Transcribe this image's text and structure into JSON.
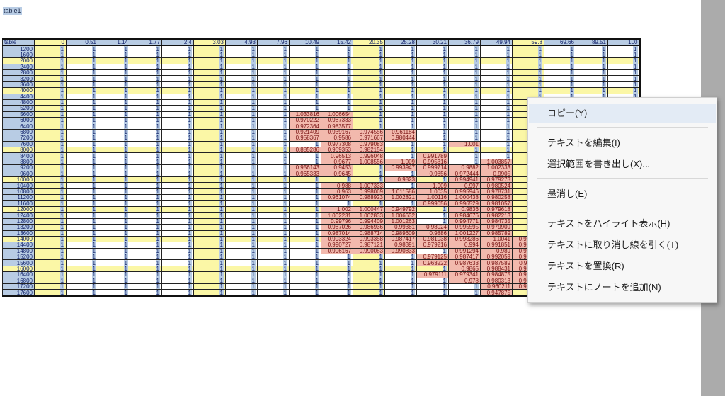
{
  "document": {
    "title": "table1"
  },
  "table": {
    "corner": "table",
    "columns": [
      "0",
      "0.51",
      "1.14",
      "1.77",
      "2.4",
      "3.03",
      "4.93",
      "7.96",
      "10.49",
      "15.42",
      "20.35",
      "25.28",
      "30.21",
      "36.79",
      "49.94",
      "59.8",
      "69.66",
      "89.51",
      "100"
    ],
    "highlight_columns": [
      "0",
      "3.03",
      "20.35",
      "59.8"
    ],
    "highlight_rows": [
      "2000",
      "4000",
      "8000",
      "10000",
      "12000",
      "14000",
      "16000"
    ],
    "rows": [
      {
        "h": "1200",
        "c": [
          "1",
          "1",
          "1",
          "1",
          "1",
          "1",
          "1",
          "1",
          "1",
          "1",
          "1",
          "1",
          "1",
          "1",
          "1",
          "1",
          "1",
          "1",
          "1"
        ]
      },
      {
        "h": "1600",
        "c": [
          "1",
          "1",
          "1",
          "1",
          "1",
          "1",
          "1",
          "1",
          "1",
          "1",
          "1",
          "1",
          "1",
          "1",
          "1",
          "1",
          "1",
          "1",
          "1"
        ]
      },
      {
        "h": "2000",
        "c": [
          "1",
          "1",
          "1",
          "1",
          "1",
          "1",
          "1",
          "1",
          "1",
          "1",
          "1",
          "1",
          "1",
          "1",
          "1",
          "1",
          "1",
          "1",
          "1"
        ]
      },
      {
        "h": "2400",
        "c": [
          "1",
          "1",
          "1",
          "1",
          "1",
          "1",
          "1",
          "1",
          "1",
          "1",
          "1",
          "1",
          "1",
          "1",
          "1",
          "1",
          "1",
          "1",
          "1"
        ]
      },
      {
        "h": "2800",
        "c": [
          "1",
          "1",
          "1",
          "1",
          "1",
          "1",
          "1",
          "1",
          "1",
          "1",
          "1",
          "1",
          "1",
          "1",
          "1",
          "1",
          "1",
          "1",
          "1"
        ]
      },
      {
        "h": "3200",
        "c": [
          "1",
          "1",
          "1",
          "1",
          "1",
          "1",
          "1",
          "1",
          "1",
          "1",
          "1",
          "1",
          "1",
          "1",
          "1",
          "1",
          "1",
          "1",
          "1"
        ]
      },
      {
        "h": "3600",
        "c": [
          "1",
          "1",
          "1",
          "1",
          "1",
          "1",
          "1",
          "1",
          "1",
          "1",
          "1",
          "1",
          "1",
          "1",
          "1",
          "1",
          "1",
          "1",
          "1"
        ]
      },
      {
        "h": "4000",
        "c": [
          "1",
          "1",
          "1",
          "1",
          "1",
          "1",
          "1",
          "1",
          "1",
          "1",
          "1",
          "1",
          "1",
          "1",
          "1",
          "1",
          "1",
          "1",
          "1"
        ]
      },
      {
        "h": "4400",
        "c": [
          "1",
          "1",
          "1",
          "1",
          "1",
          "1",
          "1",
          "1",
          "1",
          "1",
          "1",
          "1",
          "1",
          "1",
          "1",
          "1",
          "1",
          "1",
          "1"
        ]
      },
      {
        "h": "4800",
        "c": [
          "1",
          "1",
          "1",
          "1",
          "1",
          "1",
          "1",
          "1",
          "1",
          "1",
          "1",
          "1",
          "1",
          "1",
          "1",
          "1",
          "1",
          "1",
          "1"
        ]
      },
      {
        "h": "5200",
        "c": [
          "1",
          "1",
          "1",
          "1",
          "1",
          "1",
          "1",
          "1",
          "1",
          "1",
          "1",
          "1",
          "1",
          "1",
          "1",
          "1",
          "1",
          "1",
          "1"
        ]
      },
      {
        "h": "5600",
        "c": [
          "1",
          "1",
          "1",
          "1",
          "1",
          "1",
          "1",
          "1",
          "1.033816",
          "1.006654",
          "1",
          "1",
          "1",
          "1",
          "1",
          "1",
          "1",
          "1",
          "1"
        ]
      },
      {
        "h": "6000",
        "c": [
          "1",
          "1",
          "1",
          "1",
          "1",
          "1",
          "1",
          "1",
          "0.970222",
          "0.987333",
          "1",
          "1",
          "1",
          "1",
          "1",
          "1",
          "1",
          "1",
          "1"
        ]
      },
      {
        "h": "6400",
        "c": [
          "1",
          "1",
          "1",
          "1",
          "1",
          "1",
          "1",
          "1",
          "0.972364",
          "0.983577",
          "1",
          "1",
          "1",
          "1",
          "1",
          "1",
          "1",
          "1",
          "1"
        ]
      },
      {
        "h": "6800",
        "c": [
          "1",
          "1",
          "1",
          "1",
          "1",
          "1",
          "1",
          "1",
          "0.921409",
          "0.939167",
          "0.974556",
          "0.961184",
          "1",
          "1",
          "1",
          "1",
          "1",
          "1",
          "1"
        ]
      },
      {
        "h": "7200",
        "c": [
          "1",
          "1",
          "1",
          "1",
          "1",
          "1",
          "1",
          "1",
          "0.958367",
          "0.9586",
          "0.971667",
          "0.980444",
          "1",
          "1",
          "1",
          "1",
          "1",
          "1",
          "1"
        ]
      },
      {
        "h": "7600",
        "c": [
          "1",
          "1",
          "1",
          "1",
          "1",
          "1",
          "1",
          "1",
          "1",
          "0.977308",
          "0.979083",
          "1",
          "1",
          "1.001",
          "1",
          "1",
          "1",
          "1",
          "1"
        ]
      },
      {
        "h": "8000",
        "c": [
          "1",
          "1",
          "1",
          "1",
          "1",
          "1",
          "1",
          "1",
          "0.885286",
          "0.969353",
          "0.982154",
          "1",
          "1",
          "1",
          "1",
          "1",
          "1",
          "1",
          "1"
        ]
      },
      {
        "h": "8400",
        "c": [
          "1",
          "1",
          "1",
          "1",
          "1",
          "1",
          "1",
          "1",
          "1",
          "0.96513",
          "0.996048",
          "1",
          "0.991789",
          "1",
          "1",
          "1",
          "1",
          "1",
          "1"
        ]
      },
      {
        "h": "8800",
        "c": [
          "1",
          "1",
          "1",
          "1",
          "1",
          "1",
          "1",
          "1",
          "1",
          "0.9677",
          "1.008556",
          "1.009",
          "0.995316",
          "1",
          "1.003857",
          "1",
          "1",
          "1",
          "1"
        ]
      },
      {
        "h": "9200",
        "c": [
          "1",
          "1",
          "1",
          "1",
          "1",
          "1",
          "1",
          "1",
          "0.956143",
          "0.9453",
          "1",
          "0.993947",
          "0.999714",
          "0.9882",
          "1.002333",
          "1",
          "1",
          "1",
          "1"
        ]
      },
      {
        "h": "9600",
        "c": [
          "1",
          "1",
          "1",
          "1",
          "1",
          "1",
          "1",
          "1",
          "0.965333",
          "0.9645",
          "1",
          "1",
          "0.9856",
          "0.972444",
          "0.9905",
          "1",
          "1",
          "1",
          "1"
        ]
      },
      {
        "h": "10000",
        "c": [
          "1",
          "1",
          "1",
          "1",
          "1",
          "1",
          "1",
          "1",
          "1",
          "1",
          "1",
          "0.9823",
          "1",
          "0.994941",
          "0.979273",
          "1",
          "1",
          "1",
          "1"
        ]
      },
      {
        "h": "10400",
        "c": [
          "1",
          "1",
          "1",
          "1",
          "1",
          "1",
          "1",
          "1",
          "1",
          "0.988",
          "1.007333",
          "1",
          "1.009",
          "0.997",
          "0.980524",
          "1",
          "1",
          "1",
          "1"
        ]
      },
      {
        "h": "10800",
        "c": [
          "1",
          "1",
          "1",
          "1",
          "1",
          "1",
          "1",
          "1",
          "1",
          "0.963",
          "0.998069",
          "1.011586",
          "1.0035",
          "0.995946",
          "0.978731",
          "1",
          "1",
          "1",
          "1"
        ]
      },
      {
        "h": "11200",
        "c": [
          "1",
          "1",
          "1",
          "1",
          "1",
          "1",
          "1",
          "1",
          "1",
          "0.961074",
          "0.988923",
          "1.002821",
          "1.00116",
          "1.000438",
          "0.980258",
          "1",
          "1",
          "1",
          "1"
        ]
      },
      {
        "h": "11600",
        "c": [
          "1",
          "1",
          "1",
          "1",
          "1",
          "1",
          "1",
          "1",
          "1",
          "1",
          "1",
          "1",
          "0.999056",
          "0.996529",
          "0.981057",
          "1",
          "1",
          "1",
          "1"
        ]
      },
      {
        "h": "12000",
        "c": [
          "1",
          "1",
          "1",
          "1",
          "1",
          "1",
          "1",
          "1",
          "1",
          "1.002",
          "1.000447",
          "0.949792",
          "1",
          "0.9836",
          "0.979618",
          "1",
          "1",
          "1",
          "1"
        ]
      },
      {
        "h": "12400",
        "c": [
          "1",
          "1",
          "1",
          "1",
          "1",
          "1",
          "1",
          "1",
          "1",
          "1.002231",
          "1.002833",
          "1.006632",
          "1",
          "0.984676",
          "0.982213",
          "1",
          "1",
          "1",
          "1"
        ]
      },
      {
        "h": "12800",
        "c": [
          "1",
          "1",
          "1",
          "1",
          "1",
          "1",
          "1",
          "1",
          "1",
          "0.99796",
          "0.994409",
          "1.001263",
          "1",
          "0.994771",
          "0.984735",
          "1",
          "1",
          "1",
          "1"
        ]
      },
      {
        "h": "13200",
        "c": [
          "1",
          "1",
          "1",
          "1",
          "1",
          "1",
          "1",
          "1",
          "1",
          "0.987026",
          "0.986936",
          "0.99381",
          "0.98024",
          "0.995595",
          "0.979909",
          "1",
          "1",
          "1",
          "1"
        ]
      },
      {
        "h": "13600",
        "c": [
          "1",
          "1",
          "1",
          "1",
          "1",
          "1",
          "1",
          "1",
          "1",
          "0.987014",
          "0.988714",
          "0.989609",
          "0.9886",
          "1.001227",
          "0.985789",
          "1",
          "1",
          "1",
          "1"
        ]
      },
      {
        "h": "14000",
        "c": [
          "1",
          "1",
          "1",
          "1",
          "1",
          "1",
          "1",
          "1",
          "1",
          "0.993324",
          "0.993358",
          "0.987417",
          "0.981038",
          "0.998286",
          "1.0041",
          "0.999061",
          "1",
          "0.982346",
          "0.991887"
        ]
      },
      {
        "h": "14400",
        "c": [
          "1",
          "1",
          "1",
          "1",
          "1",
          "1",
          "1",
          "1",
          "1",
          "0.990727",
          "0.987121",
          "0.98391",
          "0.979216",
          "0.994",
          "0.991851",
          "0.986941",
          "0.980514",
          "0.9962",
          "1.007379"
        ]
      },
      {
        "h": "14800",
        "c": [
          "1",
          "1",
          "1",
          "1",
          "1",
          "1",
          "1",
          "1",
          "1",
          "0.996167",
          "0.990083",
          "0.990833",
          "1",
          "0.991294",
          "0.989",
          "0.994444",
          "0.995383",
          "0.994303",
          "1.006923"
        ]
      },
      {
        "h": "15200",
        "c": [
          "1",
          "1",
          "1",
          "1",
          "1",
          "1",
          "1",
          "1",
          "1",
          "1",
          "1",
          "1",
          "0.979125",
          "0.987417",
          "0.992059",
          "0.990473",
          "0.998377",
          "0.998826",
          "1.001165"
        ]
      },
      {
        "h": "15600",
        "c": [
          "1",
          "1",
          "1",
          "1",
          "1",
          "1",
          "1",
          "1",
          "1",
          "1",
          "1",
          "1",
          "0.963222",
          "0.987633",
          "0.987589",
          "0.998611",
          "1.012945",
          "1.010306",
          "1.007658"
        ]
      },
      {
        "h": "16000",
        "c": [
          "1",
          "1",
          "1",
          "1",
          "1",
          "1",
          "1",
          "1",
          "1",
          "1",
          "1",
          "1",
          "1",
          "0.9865",
          "0.988431",
          "0.995706",
          "1.0002",
          "1.02285",
          "1.006753"
        ]
      },
      {
        "h": "16400",
        "c": [
          "1",
          "1",
          "1",
          "1",
          "1",
          "1",
          "1",
          "1",
          "1",
          "1",
          "1",
          "1",
          "0.979111",
          "0.979341",
          "0.984875",
          "0.988758",
          "0.962571",
          "1.037671",
          "1.008488"
        ]
      },
      {
        "h": "16800",
        "c": [
          "1",
          "1",
          "1",
          "1",
          "1",
          "1",
          "1",
          "1",
          "1",
          "1",
          "1",
          "1",
          "1",
          "0.978",
          "0.980313",
          "0.995784",
          "0.993375",
          "1.019087",
          "1.00557"
        ]
      },
      {
        "h": "17200",
        "c": [
          "1",
          "1",
          "1",
          "1",
          "1",
          "1",
          "1",
          "1",
          "1",
          "1",
          "1",
          "1",
          "1",
          "1",
          "0.960211",
          "0.986263",
          "1.008927",
          "1.008333",
          "1.019688"
        ]
      },
      {
        "h": "17600",
        "c": [
          "1",
          "1",
          "1",
          "1",
          "1",
          "1",
          "1",
          "1",
          "1",
          "1",
          "1",
          "1",
          "1",
          "1",
          "0.947875",
          "1",
          "1.00475",
          "1",
          "1.029098"
        ]
      }
    ]
  },
  "context_menu": {
    "items": [
      {
        "label": "コピー(Y)",
        "id": "copy"
      },
      {
        "label": "テキストを編集(I)",
        "id": "edit-text"
      },
      {
        "label": "選択範囲を書き出し(X)...",
        "id": "export-selection"
      },
      {
        "label": "墨消し(E)",
        "id": "redact"
      },
      {
        "label": "テキストをハイライト表示(H)",
        "id": "highlight-text"
      },
      {
        "label": "テキストに取り消し線を引く(T)",
        "id": "strikethrough-text"
      },
      {
        "label": "テキストを置換(R)",
        "id": "replace-text"
      },
      {
        "label": "テキストにノートを追加(N)",
        "id": "add-note"
      }
    ]
  },
  "colors": {
    "header_blue": "#b8cce4",
    "highlight_yellow": "#fbf7a6",
    "changed_red": "#f2b9ad",
    "menu_hover": "#e3ebf5"
  }
}
